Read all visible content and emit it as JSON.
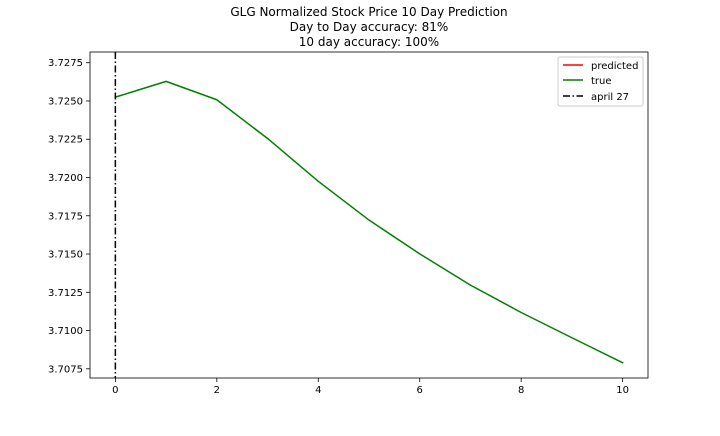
{
  "colors": {
    "predicted": "#ff0000",
    "true": "#008000",
    "marker": "#000000",
    "axis": "#000000",
    "background": "#ffffff"
  },
  "chart_data": {
    "type": "line",
    "title_lines": [
      "GLG Normalized Stock Price 10 Day Prediction",
      "Day to Day accuracy: 81%",
      "10 day accuracy: 100%"
    ],
    "xlabel": "",
    "ylabel": "",
    "xlim": [
      -0.5,
      10.5
    ],
    "ylim": [
      3.7069,
      3.7282
    ],
    "xticks": [
      0,
      2,
      4,
      6,
      8,
      10
    ],
    "xtick_labels": [
      "0",
      "2",
      "4",
      "6",
      "8",
      "10"
    ],
    "yticks": [
      3.7075,
      3.71,
      3.7125,
      3.715,
      3.7175,
      3.72,
      3.7225,
      3.725,
      3.7275
    ],
    "ytick_labels": [
      "3.7075",
      "3.7100",
      "3.7125",
      "3.7150",
      "3.7175",
      "3.7200",
      "3.7225",
      "3.7250",
      "3.7275"
    ],
    "grid": false,
    "legend_position": "top-right",
    "legend": [
      {
        "label": "predicted",
        "style": "solid",
        "color": "#ff0000"
      },
      {
        "label": "true",
        "style": "solid",
        "color": "#008000"
      },
      {
        "label": "april 27",
        "style": "dashdot",
        "color": "#000000"
      }
    ],
    "series": [
      {
        "name": "predicted",
        "color": "#ff0000",
        "x": [],
        "values": []
      },
      {
        "name": "true",
        "color": "#008000",
        "x": [
          0,
          1,
          2,
          3,
          4,
          5,
          6,
          7,
          8,
          9,
          10
        ],
        "values": [
          3.72525,
          3.72628,
          3.72508,
          3.72255,
          3.71975,
          3.71722,
          3.71501,
          3.71297,
          3.71118,
          3.70953,
          3.7079
        ]
      }
    ],
    "vertical_line": {
      "label": "april 27",
      "x": 0,
      "style": "dashdot",
      "color": "#000000"
    }
  }
}
